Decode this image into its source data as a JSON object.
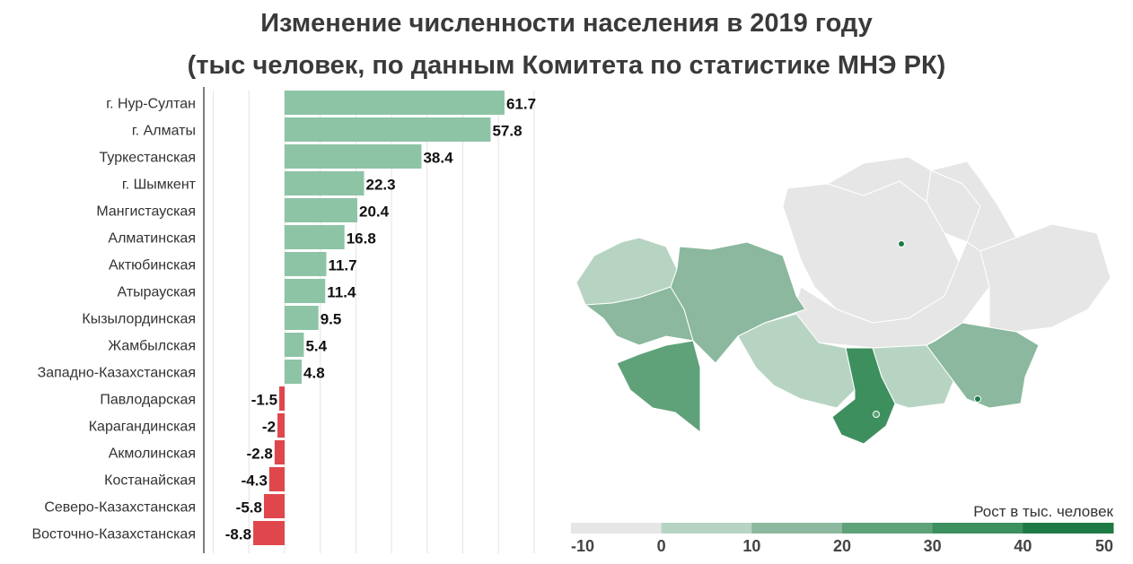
{
  "title": {
    "line1": "Изменение численности населения в 2019 году",
    "line2": "(тыс человек, по данным Комитета по статистике МНЭ РК)"
  },
  "chart_data": [
    {
      "type": "bar",
      "orientation": "horizontal",
      "title": "Изменение численности населения в 2019 году (тыс человек, по данным Комитета по статистике МНЭ РК)",
      "categories": [
        "г. Нур-Султан",
        "г. Алматы",
        "Туркестанская",
        "г. Шымкент",
        "Мангистауская",
        "Алматинская",
        "Актюбинская",
        "Атырауская",
        "Кызылординская",
        "Жамбылская",
        "Западно-Казахстанская",
        "Павлодарская",
        "Карагандинская",
        "Акмолинская",
        "Костанайская",
        "Северо-Казахстанская",
        "Восточно-Казахстанская"
      ],
      "values": [
        61.7,
        57.8,
        38.4,
        22.3,
        20.4,
        16.8,
        11.7,
        11.4,
        9.5,
        5.4,
        4.8,
        -1.5,
        -2,
        -2.8,
        -4.3,
        -5.8,
        -8.8
      ],
      "value_labels": [
        "61.7",
        "57.8",
        "38.4",
        "22.3",
        "20.4",
        "16.8",
        "11.7",
        "11.4",
        "9.5",
        "5.4",
        "4.8",
        "-1.5",
        "-2",
        "-2.8",
        "-4.3",
        "-5.8",
        "-8.8"
      ],
      "xlim": [
        -12,
        66
      ],
      "grid": true,
      "colors": {
        "positive": "#8ec4a6",
        "negative": "#e0474c"
      }
    }
  ],
  "legend": {
    "title": "Рост в тыс. человек",
    "ticks": [
      "-10",
      "0",
      "10",
      "20",
      "30",
      "40",
      "50"
    ],
    "bins": [
      "#e6e6e6",
      "#b7d4c3",
      "#8bb89e",
      "#5fa27a",
      "#3d8f5e",
      "#1e7a45"
    ]
  },
  "map": {
    "colors": {
      "no_data": "#e6e6e6",
      "bin_0_10": "#b7d4c3",
      "bin_10_20": "#8bb89e",
      "bin_20_30": "#5fa27a",
      "bin_30_40": "#3d8f5e",
      "bin_50_plus": "#1e7a45",
      "border": "#ffffff"
    }
  }
}
